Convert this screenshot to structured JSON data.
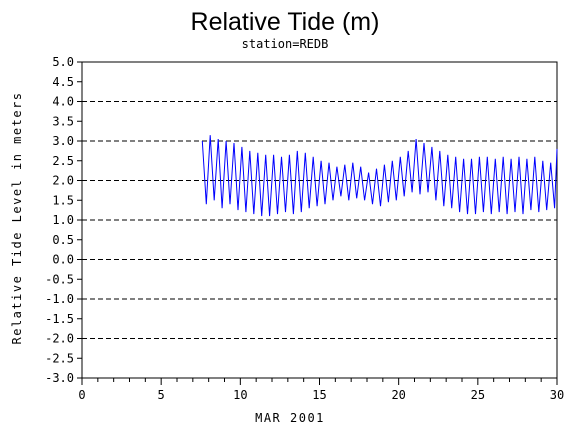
{
  "chart_data": {
    "type": "line",
    "title": "Relative Tide (m)",
    "subtitle": "station=REDB",
    "xlabel": "MAR 2001",
    "ylabel": "Relative Tide Level in meters",
    "xlim": [
      0,
      30
    ],
    "ylim": [
      -3.0,
      5.0
    ],
    "x_ticks": [
      "0",
      "5",
      "10",
      "15",
      "20",
      "25",
      "30"
    ],
    "y_ticks": [
      "5.0",
      "4.5",
      "4.0",
      "3.5",
      "3.0",
      "2.5",
      "2.0",
      "1.5",
      "1.0",
      "0.5",
      "0.0",
      "-0.5",
      "-1.0",
      "-1.5",
      "-2.0",
      "-2.5",
      "-3.0"
    ],
    "grid": "dashed horizontal at every 1.0",
    "line_color": "#0000ff",
    "series": [
      {
        "x": [
          7.6,
          7.85,
          8.1,
          8.35,
          8.6,
          8.85,
          9.1,
          9.35,
          9.6,
          9.85,
          10.1,
          10.35,
          10.6,
          10.85,
          11.1,
          11.35,
          11.6,
          11.85,
          12.1,
          12.35,
          12.6,
          12.85,
          13.1,
          13.35,
          13.6,
          13.85,
          14.1,
          14.35,
          14.6,
          14.85,
          15.1,
          15.35,
          15.6,
          15.85,
          16.1,
          16.35,
          16.6,
          16.85,
          17.1,
          17.35,
          17.6,
          17.85,
          18.1,
          18.35,
          18.6,
          18.85,
          19.1,
          19.35,
          19.6,
          19.85,
          20.1,
          20.35,
          20.6,
          20.85,
          21.1,
          21.35,
          21.6,
          21.85,
          22.1,
          22.35,
          22.6,
          22.85,
          23.1,
          23.35,
          23.6,
          23.85,
          24.1,
          24.35,
          24.6,
          24.85,
          25.1,
          25.35,
          25.6,
          25.85,
          26.1,
          26.35,
          26.6,
          26.85,
          27.1,
          27.35,
          27.6,
          27.85,
          28.1,
          28.35,
          28.6,
          28.85,
          29.1,
          29.35,
          29.6,
          29.85,
          30.0
        ],
        "y": [
          3.0,
          1.4,
          3.15,
          1.5,
          3.05,
          1.3,
          3.0,
          1.4,
          2.95,
          1.25,
          2.85,
          1.2,
          2.75,
          1.15,
          2.7,
          1.1,
          2.65,
          1.1,
          2.65,
          1.15,
          2.6,
          1.2,
          2.65,
          1.15,
          2.75,
          1.2,
          2.7,
          1.3,
          2.6,
          1.35,
          2.5,
          1.4,
          2.45,
          1.5,
          2.35,
          1.6,
          2.4,
          1.5,
          2.45,
          1.55,
          2.35,
          1.5,
          2.2,
          1.4,
          2.3,
          1.35,
          2.4,
          1.45,
          2.5,
          1.5,
          2.6,
          1.6,
          2.75,
          1.7,
          3.05,
          1.65,
          2.95,
          1.7,
          2.85,
          1.5,
          2.75,
          1.35,
          2.65,
          1.3,
          2.6,
          1.2,
          2.55,
          1.15,
          2.55,
          1.15,
          2.6,
          1.2,
          2.6,
          1.15,
          2.55,
          1.2,
          2.6,
          1.15,
          2.55,
          1.2,
          2.6,
          1.15,
          2.55,
          1.25,
          2.6,
          1.2,
          2.5,
          1.25,
          2.45,
          1.3,
          2.8
        ]
      }
    ]
  }
}
